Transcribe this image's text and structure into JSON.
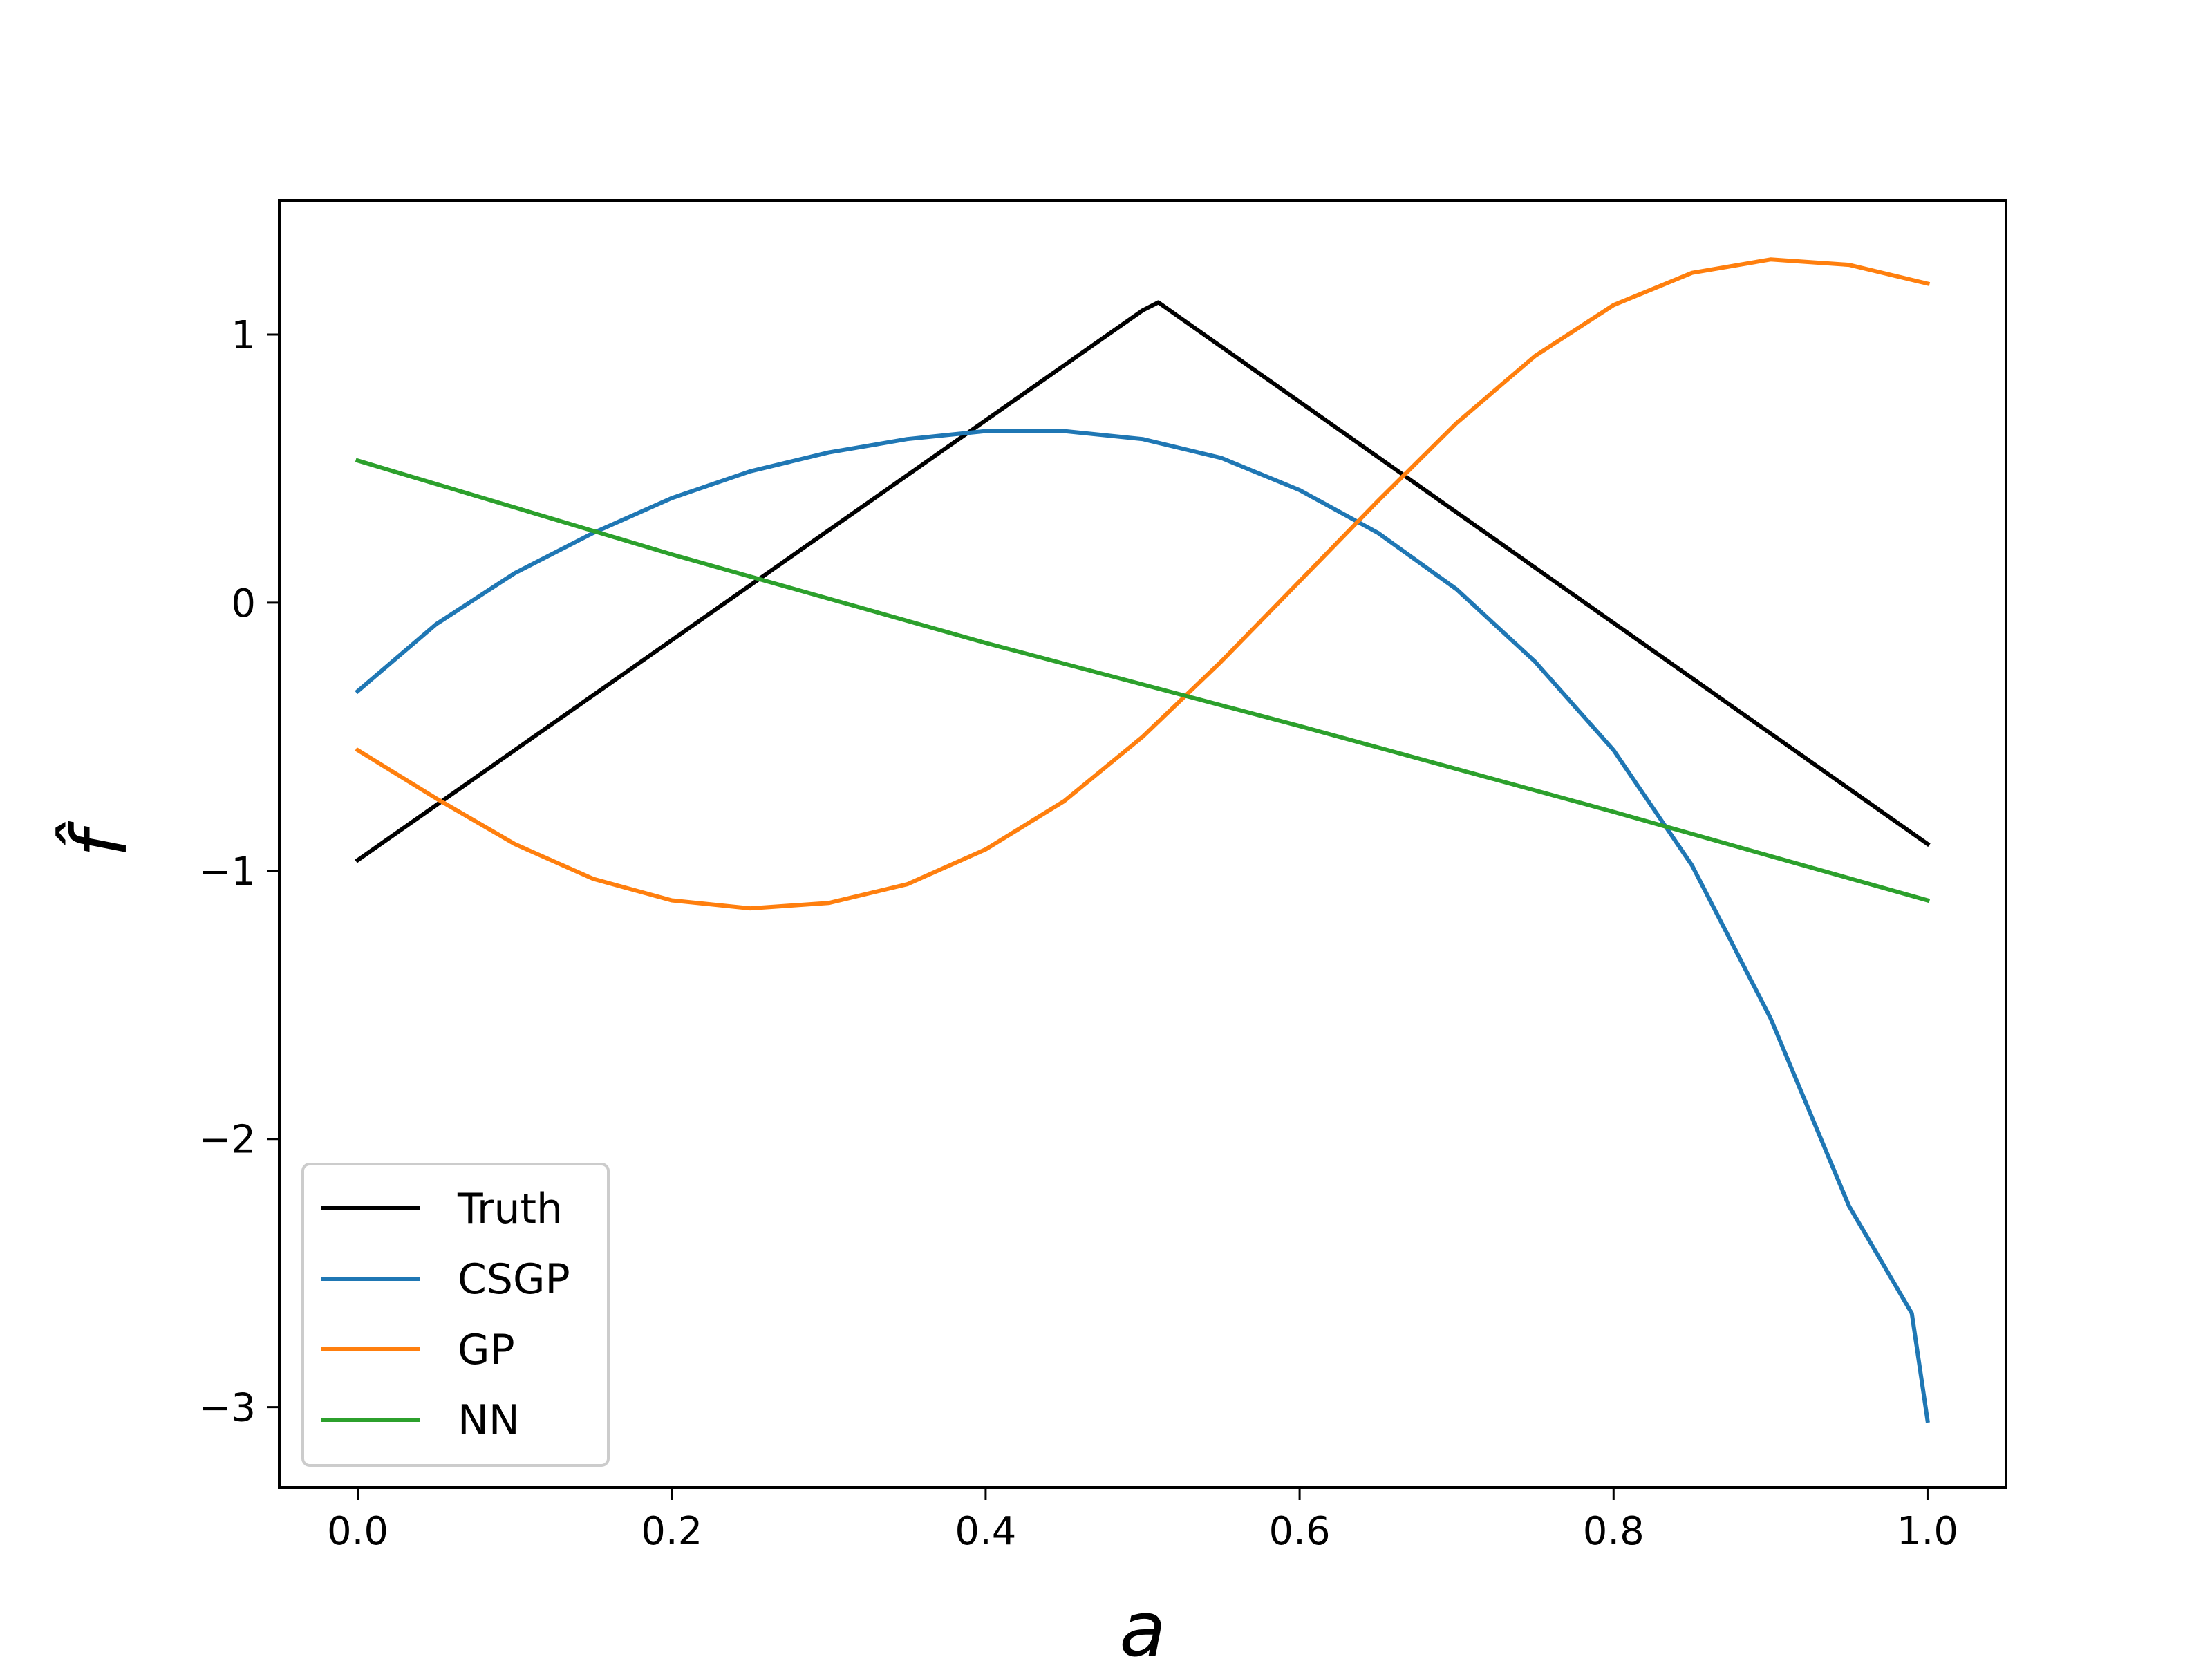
{
  "chart_data": {
    "type": "line",
    "title": "",
    "xlabel": "a",
    "ylabel": "f̂",
    "xlim": [
      -0.05,
      1.05
    ],
    "ylim": [
      -3.3,
      1.5
    ],
    "xticks": [
      0.0,
      0.2,
      0.4,
      0.6,
      0.8,
      1.0
    ],
    "xtick_labels": [
      "0.0",
      "0.2",
      "0.4",
      "0.6",
      "0.8",
      "1.0"
    ],
    "yticks": [
      -3,
      -2,
      -1,
      0,
      1
    ],
    "ytick_labels": [
      "−3",
      "−2",
      "−1",
      "0",
      "1"
    ],
    "grid": false,
    "legend_position": "lower-left",
    "series": [
      {
        "name": "Truth",
        "color": "#000000",
        "x": [
          0.0,
          0.5,
          0.51,
          1.0
        ],
        "y": [
          -0.96,
          1.09,
          1.12,
          -0.9
        ]
      },
      {
        "name": "CSGP",
        "color": "#1f77b4",
        "x": [
          0.0,
          0.05,
          0.1,
          0.15,
          0.2,
          0.25,
          0.3,
          0.35,
          0.4,
          0.45,
          0.5,
          0.55,
          0.6,
          0.65,
          0.7,
          0.75,
          0.8,
          0.85,
          0.9,
          0.95,
          0.99,
          1.0
        ],
        "y": [
          -0.33,
          -0.08,
          0.11,
          0.26,
          0.39,
          0.49,
          0.56,
          0.61,
          0.64,
          0.64,
          0.61,
          0.54,
          0.42,
          0.26,
          0.05,
          -0.22,
          -0.55,
          -0.98,
          -1.55,
          -2.25,
          -2.65,
          -3.05
        ]
      },
      {
        "name": "GP",
        "color": "#ff7f0e",
        "x": [
          0.0,
          0.05,
          0.1,
          0.15,
          0.2,
          0.25,
          0.3,
          0.35,
          0.4,
          0.45,
          0.5,
          0.55,
          0.6,
          0.65,
          0.7,
          0.75,
          0.8,
          0.85,
          0.9,
          0.95,
          1.0
        ],
        "y": [
          -0.55,
          -0.73,
          -0.9,
          -1.03,
          -1.11,
          -1.14,
          -1.12,
          -1.05,
          -0.92,
          -0.74,
          -0.5,
          -0.22,
          0.08,
          0.38,
          0.67,
          0.92,
          1.11,
          1.23,
          1.28,
          1.26,
          1.19
        ]
      },
      {
        "name": "NN",
        "color": "#2ca02c",
        "x": [
          0.0,
          0.2,
          0.4,
          0.6,
          0.8,
          1.0
        ],
        "y": [
          0.53,
          0.18,
          -0.15,
          -0.46,
          -0.78,
          -1.11
        ]
      }
    ]
  }
}
